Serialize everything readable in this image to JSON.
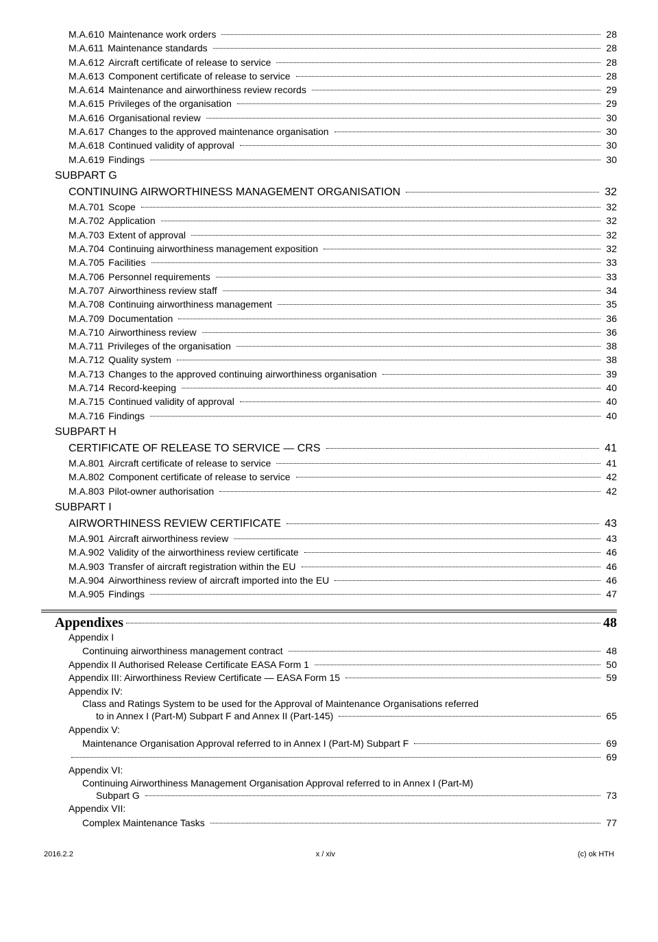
{
  "entries": [
    {
      "type": "item",
      "indent": 1,
      "code": "M.A.610",
      "label": "Maintenance work orders",
      "page": "28"
    },
    {
      "type": "item",
      "indent": 1,
      "code": "M.A.611",
      "label": "Maintenance standards",
      "page": "28"
    },
    {
      "type": "item",
      "indent": 1,
      "code": "M.A.612",
      "label": "Aircraft certificate of release to service",
      "page": "28"
    },
    {
      "type": "item",
      "indent": 1,
      "code": "M.A.613",
      "label": "Component certificate of release to service",
      "page": "28"
    },
    {
      "type": "item",
      "indent": 1,
      "code": "M.A.614",
      "label": "Maintenance and airworthiness review records",
      "page": "29"
    },
    {
      "type": "item",
      "indent": 1,
      "code": "M.A.615",
      "label": "Privileges of the organisation",
      "page": "29"
    },
    {
      "type": "item",
      "indent": 1,
      "code": "M.A.616",
      "label": "Organisational review",
      "page": "30"
    },
    {
      "type": "item",
      "indent": 1,
      "code": "M.A.617",
      "label": "Changes to the approved maintenance organisation",
      "page": "30"
    },
    {
      "type": "item",
      "indent": 1,
      "code": "M.A.618",
      "label": "Continued validity of approval",
      "page": "30"
    },
    {
      "type": "item",
      "indent": 1,
      "code": "M.A.619",
      "label": "Findings",
      "page": "30"
    },
    {
      "type": "subpart",
      "label": "SUBPART G"
    },
    {
      "type": "subpart-title",
      "label": "CONTINUING AIRWORTHINESS MANAGEMENT ORGANISATION",
      "page": "32"
    },
    {
      "type": "item",
      "indent": 1,
      "code": "M.A.701",
      "label": "Scope",
      "page": "32"
    },
    {
      "type": "item",
      "indent": 1,
      "code": "M.A.702",
      "label": "Application",
      "page": "32"
    },
    {
      "type": "item",
      "indent": 1,
      "code": "M.A.703",
      "label": "Extent of approval",
      "page": "32"
    },
    {
      "type": "item",
      "indent": 1,
      "code": "M.A.704",
      "label": "Continuing airworthiness management exposition",
      "page": "32"
    },
    {
      "type": "item",
      "indent": 1,
      "code": "M.A.705",
      "label": "Facilities",
      "page": "33"
    },
    {
      "type": "item",
      "indent": 1,
      "code": "M.A.706",
      "label": "Personnel requirements",
      "page": "33"
    },
    {
      "type": "item",
      "indent": 1,
      "code": "M.A.707",
      "label": "Airworthiness review staff",
      "page": "34"
    },
    {
      "type": "item",
      "indent": 1,
      "code": "M.A.708",
      "label": "Continuing airworthiness management",
      "page": "35"
    },
    {
      "type": "item",
      "indent": 1,
      "code": "M.A.709",
      "label": "Documentation",
      "page": "36"
    },
    {
      "type": "item",
      "indent": 1,
      "code": "M.A.710",
      "label": "Airworthiness review",
      "page": "36"
    },
    {
      "type": "item",
      "indent": 1,
      "code": "M.A.711",
      "label": "Privileges of the organisation",
      "page": "38"
    },
    {
      "type": "item",
      "indent": 1,
      "code": "M.A.712",
      "label": "Quality system",
      "page": "38"
    },
    {
      "type": "item",
      "indent": 1,
      "code": "M.A.713",
      "label": "Changes to the approved continuing airworthiness organisation",
      "page": "39"
    },
    {
      "type": "item",
      "indent": 1,
      "code": "M.A.714",
      "label": "Record-keeping",
      "page": "40"
    },
    {
      "type": "item",
      "indent": 1,
      "code": "M.A.715",
      "label": "Continued validity of approval",
      "page": "40"
    },
    {
      "type": "item",
      "indent": 1,
      "code": "M.A.716",
      "label": "Findings",
      "page": "40"
    },
    {
      "type": "subpart",
      "label": "SUBPART H"
    },
    {
      "type": "subpart-title",
      "label": "CERTIFICATE OF RELEASE TO SERVICE — CRS",
      "page": "41"
    },
    {
      "type": "item",
      "indent": 1,
      "code": "M.A.801",
      "label": "Aircraft certificate of release to service",
      "page": "41"
    },
    {
      "type": "item",
      "indent": 1,
      "code": "M.A.802",
      "label": "Component certificate of release to service",
      "page": "42"
    },
    {
      "type": "item",
      "indent": 1,
      "code": "M.A.803",
      "label": "Pilot-owner authorisation",
      "page": "42"
    },
    {
      "type": "subpart",
      "label": "SUBPART I"
    },
    {
      "type": "subpart-title",
      "label": "AIRWORTHINESS REVIEW CERTIFICATE",
      "page": "43"
    },
    {
      "type": "item",
      "indent": 1,
      "code": "M.A.901",
      "label": "Aircraft airworthiness review",
      "page": "43"
    },
    {
      "type": "item",
      "indent": 1,
      "code": "M.A.902",
      "label": "Validity of the airworthiness review certificate",
      "page": "46"
    },
    {
      "type": "item",
      "indent": 1,
      "code": "M.A.903",
      "label": "Transfer of aircraft registration within the EU",
      "page": "46"
    },
    {
      "type": "item",
      "indent": 1,
      "code": "M.A.904",
      "label": "Airworthiness review of aircraft imported into the EU",
      "page": "46"
    },
    {
      "type": "item",
      "indent": 1,
      "code": "M.A.905",
      "label": "Findings",
      "page": "47"
    }
  ],
  "appendixes": {
    "header": "Appendixes",
    "header_page": "48",
    "items": [
      {
        "type": "head",
        "label": "Appendix I"
      },
      {
        "type": "sub",
        "label": "Continuing airworthiness management contract",
        "page": "48"
      },
      {
        "type": "headline",
        "label": "Appendix II Authorised Release Certificate EASA Form 1",
        "page": "50"
      },
      {
        "type": "headline",
        "label": "Appendix III: Airworthiness Review Certificate — EASA Form 15",
        "page": "59"
      },
      {
        "type": "head",
        "label": "Appendix IV:"
      },
      {
        "type": "wrap",
        "lines": [
          "Class and Ratings System to be used for the Approval of Maintenance Organisations referred"
        ]
      },
      {
        "type": "wrapend",
        "label": "to in Annex I (Part-M) Subpart F and Annex II (Part-145)",
        "page": "65"
      },
      {
        "type": "head",
        "label": "Appendix V:"
      },
      {
        "type": "sub",
        "label": "Maintenance Organisation Approval referred to in Annex I (Part-M) Subpart F",
        "page": "69"
      },
      {
        "type": "dotsonly",
        "page": "69"
      },
      {
        "type": "head",
        "label": "Appendix VI:"
      },
      {
        "type": "wrap",
        "lines": [
          "Continuing Airworthiness Management Organisation Approval referred to in Annex I (Part-M)"
        ]
      },
      {
        "type": "wrapend",
        "label": "Subpart G",
        "page": "73"
      },
      {
        "type": "head",
        "label": "Appendix VII:"
      },
      {
        "type": "sub",
        "label": "Complex Maintenance Tasks",
        "page": "77"
      }
    ]
  },
  "footer": {
    "left": "2016.2.2",
    "center": "x / xiv",
    "right": "(c) ok HTH"
  }
}
